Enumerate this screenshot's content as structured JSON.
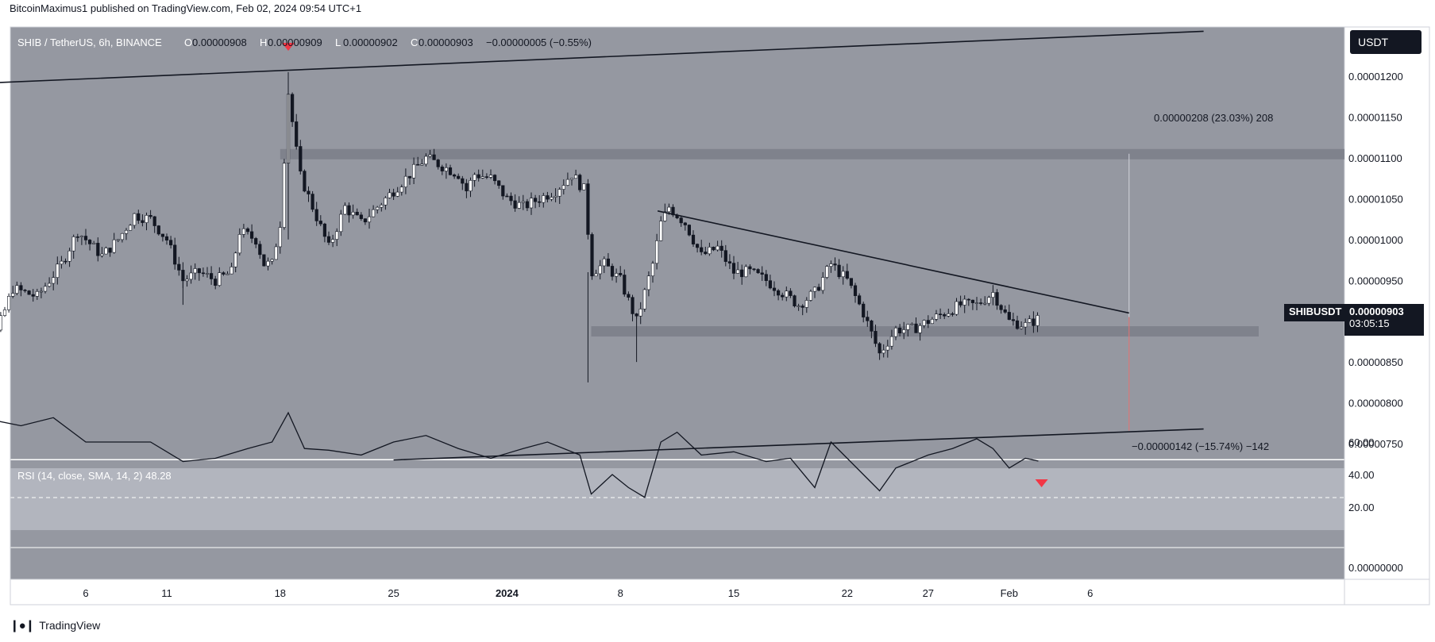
{
  "header": {
    "text": "BitcoinMaximus1 published on TradingView.com, Feb 02, 2024 09:54 UTC+1"
  },
  "legend": {
    "symbol": "SHIB / TetherUS, 6h, BINANCE",
    "o_label": "O",
    "o_value": "0.00000908",
    "h_label": "H",
    "h_value": "0.00000909",
    "l_label": "L",
    "l_value": "0.00000902",
    "c_label": "C",
    "c_value": "0.00000903",
    "change": "−0.00000005 (−0.55%)"
  },
  "currency_button": "USDT",
  "price_tag": {
    "symbol": "SHIBUSDT",
    "price": "0.00000903",
    "countdown": "03:05:15"
  },
  "measure": {
    "up_label": "0.00000208 (23.03%) 208",
    "down_label": "−0.00000142 (−15.74%) −142"
  },
  "rsi_legend": "RSI (14, close, SMA, 14, 2)  48.28",
  "footer": {
    "brand": "TradingView"
  },
  "colors": {
    "chart_bg": "#9598a1",
    "rsi_bg": "#b2b5be",
    "up_candle": "#ffffff",
    "down_candle": "#131722",
    "marker": "#f23645",
    "zone": "#787b86"
  },
  "chart_data": {
    "type": "candlestick",
    "symbol": "SHIBUSDT",
    "timeframe": "6h",
    "price_axis": {
      "ticks": [
        "0.00001200",
        "0.00001150",
        "0.00001100",
        "0.00001050",
        "0.00001000",
        "0.00000950",
        "0.00000900",
        "0.00000850",
        "0.00000800",
        "0.00000750"
      ],
      "tick_values": [
        12.0,
        11.5,
        11.0,
        10.5,
        10.0,
        9.5,
        9.0,
        8.5,
        8.0,
        7.5
      ],
      "range": [
        7.3,
        12.6
      ],
      "unit_multiplier": "1e-6"
    },
    "rsi_axis": {
      "ticks": [
        "60.00",
        "40.00",
        "20.00",
        "0.00000000"
      ],
      "tick_values": [
        60,
        40,
        20,
        0
      ]
    },
    "time_axis": {
      "labels": [
        "6",
        "11",
        "18",
        "25",
        "2024",
        "8",
        "15",
        "22",
        "27",
        "Feb",
        "6"
      ],
      "label_days": [
        -26,
        -21,
        -14,
        -7,
        0,
        7,
        14,
        21,
        26,
        31,
        36
      ]
    },
    "horizontal_zones": [
      {
        "name": "resistance",
        "value": 11.05
      },
      {
        "name": "support",
        "value": 8.88
      }
    ],
    "trendlines": [
      {
        "name": "channel-top",
        "points": [
          [
            -34,
            11.9
          ],
          [
            43,
            12.55
          ]
        ]
      },
      {
        "name": "channel-bottom",
        "points": [
          [
            -7,
            7.3
          ],
          [
            43,
            7.68
          ]
        ]
      },
      {
        "name": "descending-resistance",
        "points": [
          [
            9.3,
            10.35
          ],
          [
            38.4,
            9.1
          ]
        ]
      }
    ],
    "close_path": [
      [
        -34,
        8.4
      ],
      [
        -32,
        8.6
      ],
      [
        -30.5,
        9.4
      ],
      [
        -29,
        9.3
      ],
      [
        -27.5,
        9.7
      ],
      [
        -26.5,
        10.1
      ],
      [
        -25,
        9.8
      ],
      [
        -24,
        10.0
      ],
      [
        -23,
        10.3
      ],
      [
        -22,
        10.25
      ],
      [
        -21,
        10.0
      ],
      [
        -20,
        9.5
      ],
      [
        -19,
        9.6
      ],
      [
        -18,
        9.5
      ],
      [
        -17,
        9.6
      ],
      [
        -16.5,
        10.1
      ],
      [
        -15.5,
        10.0
      ],
      [
        -15,
        9.7
      ],
      [
        -14.5,
        9.7
      ],
      [
        -14,
        10.2
      ],
      [
        -13.5,
        11.8
      ],
      [
        -12.8,
        10.8
      ],
      [
        -12,
        10.4
      ],
      [
        -11,
        9.9
      ],
      [
        -10,
        10.4
      ],
      [
        -9,
        10.2
      ],
      [
        -8,
        10.4
      ],
      [
        -7,
        10.6
      ],
      [
        -6,
        10.8
      ],
      [
        -5,
        11.0
      ],
      [
        -4,
        10.9
      ],
      [
        -3,
        10.8
      ],
      [
        -2.5,
        10.6
      ],
      [
        -2,
        10.8
      ],
      [
        -1,
        10.75
      ],
      [
        0,
        10.5
      ],
      [
        1,
        10.4
      ],
      [
        2,
        10.5
      ],
      [
        3,
        10.6
      ],
      [
        4,
        10.8
      ],
      [
        4.8,
        10.6
      ],
      [
        5.2,
        9.6
      ],
      [
        6,
        9.7
      ],
      [
        7,
        9.5
      ],
      [
        8,
        9.0
      ],
      [
        9,
        9.7
      ],
      [
        9.5,
        10.2
      ],
      [
        10,
        10.4
      ],
      [
        11,
        10.2
      ],
      [
        12,
        9.8
      ],
      [
        13,
        9.9
      ],
      [
        14,
        9.6
      ],
      [
        15,
        9.6
      ],
      [
        16,
        9.5
      ],
      [
        17,
        9.35
      ],
      [
        18,
        9.2
      ],
      [
        19,
        9.35
      ],
      [
        20,
        9.7
      ],
      [
        21,
        9.5
      ],
      [
        22,
        9.1
      ],
      [
        23,
        8.6
      ],
      [
        24,
        8.9
      ],
      [
        25,
        8.9
      ],
      [
        26,
        9.0
      ],
      [
        27,
        9.1
      ],
      [
        28,
        9.2
      ],
      [
        29,
        9.2
      ],
      [
        30,
        9.35
      ],
      [
        31,
        9.0
      ],
      [
        32,
        8.95
      ],
      [
        32.8,
        9.03
      ]
    ],
    "events": [
      {
        "day": -13.5,
        "marker": "down-triangle-price"
      },
      {
        "day": 33,
        "marker": "down-triangle-rsi"
      }
    ],
    "rsi_path": [
      [
        -34,
        62
      ],
      [
        -32,
        74
      ],
      [
        -30,
        70
      ],
      [
        -28,
        75
      ],
      [
        -26,
        60
      ],
      [
        -24,
        60
      ],
      [
        -22,
        60
      ],
      [
        -20,
        48
      ],
      [
        -18,
        50
      ],
      [
        -16,
        56
      ],
      [
        -14.5,
        60
      ],
      [
        -13.5,
        78
      ],
      [
        -12.5,
        56
      ],
      [
        -11,
        55
      ],
      [
        -9,
        52
      ],
      [
        -7,
        60
      ],
      [
        -5,
        64
      ],
      [
        -3,
        56
      ],
      [
        -1,
        50
      ],
      [
        1,
        56
      ],
      [
        2.5,
        60
      ],
      [
        4.5,
        52
      ],
      [
        5.2,
        28
      ],
      [
        6.5,
        40
      ],
      [
        7.5,
        32
      ],
      [
        8.5,
        26
      ],
      [
        9.5,
        60
      ],
      [
        10.5,
        66
      ],
      [
        12,
        52
      ],
      [
        14,
        54
      ],
      [
        16,
        48
      ],
      [
        17.5,
        50
      ],
      [
        19,
        32
      ],
      [
        20,
        60
      ],
      [
        21,
        50
      ],
      [
        22,
        40
      ],
      [
        23,
        30
      ],
      [
        24,
        44
      ],
      [
        26,
        52
      ],
      [
        27.5,
        56
      ],
      [
        29,
        62
      ],
      [
        30,
        56
      ],
      [
        31,
        44
      ],
      [
        32,
        50
      ],
      [
        32.8,
        48.28
      ]
    ]
  }
}
